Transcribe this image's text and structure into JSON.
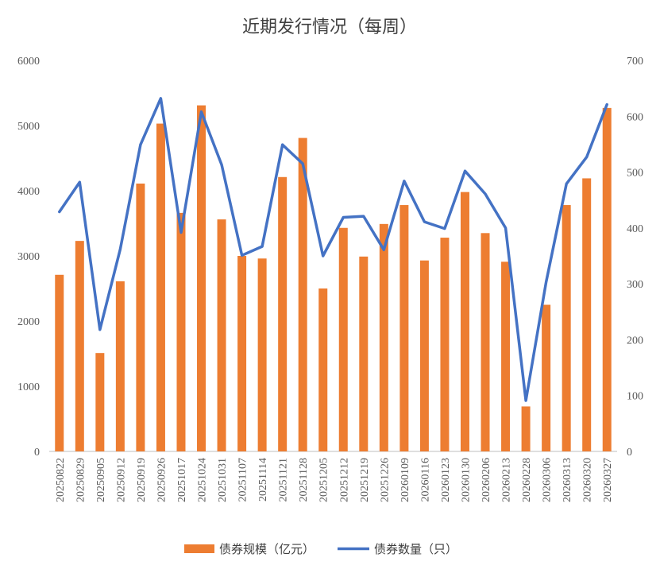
{
  "chart_data": {
    "type": "bar",
    "title": "近期发行情况（每周）",
    "categories": [
      "20250822",
      "20250829",
      "20250905",
      "20250912",
      "20250919",
      "20250926",
      "20251017",
      "20251024",
      "20251031",
      "20251107",
      "20251114",
      "20251121",
      "20251128",
      "20251205",
      "20251212",
      "20251219",
      "20251226",
      "20260109",
      "20260116",
      "20260123",
      "20260130",
      "20260206",
      "20260213",
      "20260228",
      "20260306",
      "20260313",
      "20260320",
      "20260327"
    ],
    "series": [
      {
        "name": "债券规模（亿元）",
        "type": "bar",
        "axis": "left",
        "color": "#ED7D31",
        "values": [
          2710,
          3230,
          1510,
          2610,
          4110,
          5030,
          3660,
          5310,
          3560,
          3000,
          2960,
          4210,
          4810,
          2500,
          3430,
          2990,
          3490,
          3780,
          2930,
          3280,
          3980,
          3350,
          2910,
          690,
          2250,
          3780,
          4190,
          5270
        ]
      },
      {
        "name": "债券数量（只）",
        "type": "line",
        "axis": "right",
        "color": "#4472C4",
        "values": [
          429,
          482,
          218,
          362,
          549,
          632,
          392,
          608,
          513,
          351,
          367,
          549,
          515,
          350,
          419,
          421,
          361,
          484,
          411,
          399,
          502,
          461,
          400,
          91,
          303,
          479,
          527,
          621
        ]
      }
    ],
    "y_left": {
      "min": 0,
      "max": 6000,
      "ticks": [
        "0",
        "1000",
        "2000",
        "3000",
        "4000",
        "5000",
        "6000"
      ]
    },
    "y_right": {
      "min": 0,
      "max": 700,
      "ticks": [
        "0",
        "100",
        "200",
        "300",
        "400",
        "500",
        "600",
        "700"
      ]
    },
    "grid": false,
    "legend_position": "bottom"
  }
}
